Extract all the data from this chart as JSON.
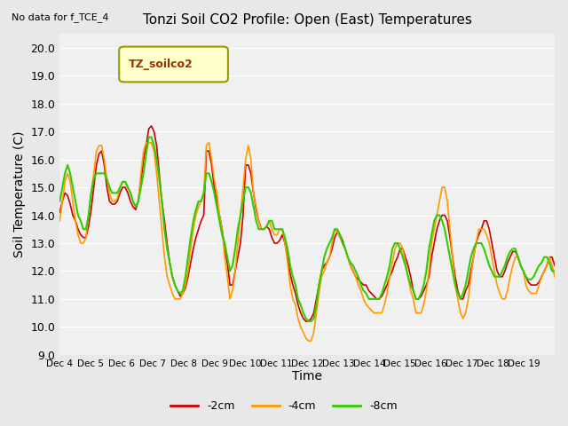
{
  "title": "Tonzi Soil CO2 Profile: Open (East) Temperatures",
  "note": "No data for f_TCE_4",
  "ylabel": "Soil Temperature (C)",
  "xlabel": "Time",
  "legend_label": "TZ_soilco2",
  "ylim": [
    9.0,
    20.5
  ],
  "yticks": [
    9.0,
    10.0,
    11.0,
    12.0,
    13.0,
    14.0,
    15.0,
    16.0,
    17.0,
    18.0,
    19.0,
    20.0
  ],
  "xtick_positions": [
    0,
    1,
    2,
    3,
    4,
    5,
    6,
    7,
    8,
    9,
    10,
    11,
    12,
    13,
    14,
    15,
    16
  ],
  "xtick_labels": [
    "Dec 4",
    "Dec 5",
    "Dec 6",
    "Dec 7",
    "Dec 8",
    "Dec 9",
    "Dec 10",
    "Dec 11",
    "Dec 12",
    "Dec 13",
    "Dec 14",
    "Dec 15",
    "Dec 16",
    "Dec 17",
    "Dec 18",
    "Dec 19",
    ""
  ],
  "colors": {
    "m2cm": "#cc0000",
    "m4cm": "#ff9900",
    "m8cm": "#33cc00"
  },
  "line_widths": {
    "m2cm": 1.2,
    "m4cm": 1.2,
    "m8cm": 1.5
  },
  "bg_color": "#e8e8e8",
  "plot_bg": "#f0f0f0",
  "legend_box_color": "#ffffcc",
  "legend_box_edge": "#999900",
  "t_2cm": [
    14.1,
    14.5,
    14.8,
    14.7,
    14.4,
    14.0,
    13.8,
    13.5,
    13.3,
    13.2,
    13.2,
    13.6,
    14.2,
    15.0,
    15.8,
    16.2,
    16.3,
    15.8,
    15.0,
    14.5,
    14.4,
    14.4,
    14.5,
    14.8,
    15.0,
    15.0,
    14.8,
    14.5,
    14.3,
    14.2,
    14.5,
    15.2,
    16.0,
    16.5,
    17.1,
    17.2,
    17.0,
    16.5,
    15.5,
    14.5,
    13.8,
    13.0,
    12.3,
    11.8,
    11.5,
    11.3,
    11.1,
    11.2,
    11.4,
    11.8,
    12.3,
    12.8,
    13.2,
    13.5,
    13.8,
    14.0,
    16.3,
    16.3,
    15.8,
    15.0,
    14.5,
    14.0,
    13.5,
    12.8,
    12.3,
    11.5,
    11.5,
    12.0,
    12.5,
    13.0,
    14.0,
    15.8,
    15.8,
    15.5,
    14.8,
    14.2,
    13.8,
    13.5,
    13.5,
    13.6,
    13.5,
    13.2,
    13.0,
    13.0,
    13.1,
    13.3,
    13.0,
    12.5,
    11.9,
    11.5,
    11.2,
    10.8,
    10.5,
    10.3,
    10.2,
    10.2,
    10.3,
    10.5,
    11.0,
    11.5,
    12.0,
    12.2,
    12.3,
    12.5,
    12.8,
    13.2,
    13.4,
    13.3,
    13.1,
    12.8,
    12.5,
    12.2,
    12.0,
    11.8,
    11.7,
    11.6,
    11.5,
    11.5,
    11.3,
    11.2,
    11.1,
    11.0,
    11.0,
    11.1,
    11.3,
    11.5,
    11.8,
    12.0,
    12.3,
    12.5,
    12.8,
    12.8,
    12.5,
    12.2,
    11.8,
    11.3,
    11.0,
    11.0,
    11.1,
    11.3,
    11.5,
    11.8,
    12.5,
    13.0,
    13.5,
    13.8,
    14.0,
    14.0,
    13.8,
    13.2,
    12.5,
    11.8,
    11.3,
    11.0,
    11.0,
    11.3,
    11.5,
    12.0,
    12.5,
    13.0,
    13.3,
    13.5,
    13.8,
    13.8,
    13.5,
    13.0,
    12.5,
    12.0,
    11.8,
    11.8,
    12.0,
    12.3,
    12.5,
    12.7,
    12.7,
    12.5,
    12.2,
    12.0,
    11.8,
    11.6,
    11.5,
    11.5,
    11.5,
    11.6,
    11.8,
    12.0,
    12.2,
    12.5,
    12.5,
    12.2
  ],
  "t_4cm": [
    13.8,
    14.5,
    15.2,
    15.5,
    15.2,
    14.5,
    13.8,
    13.3,
    13.0,
    13.0,
    13.2,
    14.0,
    14.8,
    15.5,
    16.3,
    16.5,
    16.5,
    16.0,
    15.3,
    14.8,
    14.5,
    14.5,
    14.6,
    15.0,
    15.2,
    15.2,
    15.0,
    14.8,
    14.5,
    14.3,
    14.5,
    15.5,
    16.3,
    16.6,
    16.6,
    16.6,
    16.3,
    15.5,
    14.5,
    13.5,
    12.5,
    11.8,
    11.5,
    11.2,
    11.0,
    11.0,
    11.0,
    11.2,
    11.5,
    12.0,
    12.8,
    13.5,
    14.0,
    14.3,
    14.5,
    14.8,
    16.5,
    16.6,
    16.0,
    15.3,
    14.8,
    14.0,
    13.5,
    12.5,
    11.8,
    11.0,
    11.3,
    12.0,
    13.0,
    14.0,
    15.0,
    16.0,
    16.5,
    16.0,
    14.8,
    14.3,
    13.8,
    13.5,
    13.5,
    13.6,
    13.8,
    13.5,
    13.3,
    13.3,
    13.5,
    13.5,
    13.0,
    12.3,
    11.5,
    11.0,
    10.8,
    10.3,
    10.0,
    9.8,
    9.6,
    9.5,
    9.5,
    9.8,
    10.5,
    11.2,
    11.8,
    12.0,
    12.3,
    12.5,
    13.0,
    13.5,
    13.4,
    13.2,
    13.0,
    12.8,
    12.5,
    12.2,
    12.0,
    11.8,
    11.5,
    11.3,
    11.0,
    10.8,
    10.7,
    10.6,
    10.5,
    10.5,
    10.5,
    10.5,
    10.8,
    11.2,
    11.8,
    12.3,
    12.8,
    13.0,
    13.0,
    12.8,
    12.3,
    11.8,
    11.3,
    11.0,
    10.5,
    10.5,
    10.5,
    10.8,
    11.3,
    12.0,
    13.0,
    13.5,
    14.0,
    14.5,
    15.0,
    15.0,
    14.5,
    13.5,
    12.5,
    11.5,
    11.0,
    10.5,
    10.3,
    10.5,
    11.0,
    11.8,
    12.5,
    13.0,
    13.5,
    13.5,
    13.5,
    13.3,
    13.0,
    12.5,
    12.0,
    11.5,
    11.2,
    11.0,
    11.0,
    11.3,
    11.8,
    12.2,
    12.5,
    12.5,
    12.2,
    12.0,
    11.5,
    11.3,
    11.2,
    11.2,
    11.2,
    11.5,
    11.8,
    12.0,
    12.2,
    12.5,
    12.2,
    11.8
  ],
  "t_8cm": [
    14.5,
    15.0,
    15.5,
    15.8,
    15.5,
    15.0,
    14.5,
    14.0,
    13.8,
    13.5,
    13.5,
    14.0,
    14.8,
    15.3,
    15.5,
    15.5,
    15.5,
    15.5,
    15.3,
    15.0,
    14.8,
    14.8,
    14.8,
    15.0,
    15.2,
    15.2,
    15.0,
    14.8,
    14.5,
    14.3,
    14.5,
    15.0,
    15.5,
    16.2,
    16.8,
    16.8,
    16.5,
    16.0,
    15.3,
    14.5,
    13.5,
    12.8,
    12.3,
    11.8,
    11.5,
    11.3,
    11.2,
    11.3,
    11.8,
    12.5,
    13.2,
    13.8,
    14.2,
    14.5,
    14.5,
    14.8,
    15.5,
    15.5,
    15.2,
    14.8,
    14.3,
    13.8,
    13.3,
    13.0,
    12.5,
    12.0,
    12.2,
    12.8,
    13.5,
    14.0,
    14.5,
    15.0,
    15.0,
    14.8,
    14.3,
    13.8,
    13.5,
    13.5,
    13.5,
    13.6,
    13.8,
    13.8,
    13.5,
    13.5,
    13.5,
    13.5,
    13.2,
    12.8,
    12.2,
    11.8,
    11.5,
    11.0,
    10.8,
    10.5,
    10.3,
    10.2,
    10.2,
    10.3,
    10.8,
    11.5,
    12.0,
    12.5,
    12.8,
    13.0,
    13.2,
    13.5,
    13.5,
    13.3,
    13.0,
    12.8,
    12.5,
    12.3,
    12.2,
    12.0,
    11.8,
    11.5,
    11.3,
    11.2,
    11.0,
    11.0,
    11.0,
    11.0,
    11.0,
    11.2,
    11.5,
    11.8,
    12.2,
    12.8,
    13.0,
    13.0,
    12.8,
    12.5,
    12.2,
    11.8,
    11.5,
    11.3,
    11.0,
    11.0,
    11.2,
    11.5,
    12.0,
    12.8,
    13.3,
    13.8,
    14.0,
    14.0,
    13.8,
    13.5,
    13.0,
    12.5,
    12.0,
    11.5,
    11.2,
    11.0,
    11.2,
    11.5,
    12.0,
    12.5,
    12.8,
    13.0,
    13.0,
    13.0,
    12.8,
    12.5,
    12.2,
    12.0,
    11.8,
    11.8,
    11.8,
    12.0,
    12.2,
    12.5,
    12.7,
    12.8,
    12.8,
    12.5,
    12.2,
    12.0,
    11.8,
    11.7,
    11.7,
    11.8,
    12.0,
    12.2,
    12.3,
    12.5,
    12.5,
    12.3,
    12.0,
    12.0
  ]
}
